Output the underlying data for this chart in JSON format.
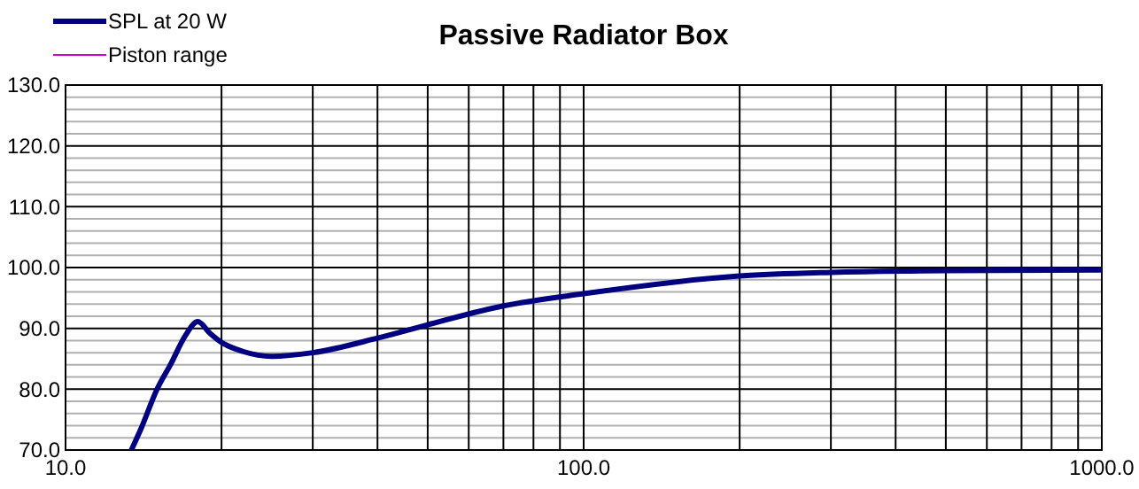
{
  "chart_data": {
    "type": "line",
    "title": "Passive Radiator Box",
    "legend": "top left",
    "grid": true,
    "log": "x",
    "xlim": [
      10,
      1000
    ],
    "ylim": [
      70,
      130
    ],
    "xticks": [
      {
        "value": 10,
        "label": "10.0"
      },
      {
        "value": 20,
        "label": null
      },
      {
        "value": 30,
        "label": null
      },
      {
        "value": 40,
        "label": null
      },
      {
        "value": 50,
        "label": null
      },
      {
        "value": 60,
        "label": null
      },
      {
        "value": 70,
        "label": null
      },
      {
        "value": 80,
        "label": null
      },
      {
        "value": 90,
        "label": null
      },
      {
        "value": 100,
        "label": "100.0"
      },
      {
        "value": 200,
        "label": null
      },
      {
        "value": 300,
        "label": null
      },
      {
        "value": 400,
        "label": null
      },
      {
        "value": 500,
        "label": null
      },
      {
        "value": 600,
        "label": null
      },
      {
        "value": 700,
        "label": null
      },
      {
        "value": 800,
        "label": null
      },
      {
        "value": 900,
        "label": null
      },
      {
        "value": 1000,
        "label": "1000.0"
      }
    ],
    "yticks": [
      {
        "value": 70,
        "label": "70.0"
      },
      {
        "value": 80,
        "label": "80.0"
      },
      {
        "value": 90,
        "label": "90.0"
      },
      {
        "value": 100,
        "label": "100.0"
      },
      {
        "value": 110,
        "label": "110.0"
      },
      {
        "value": 120,
        "label": "120.0"
      },
      {
        "value": 130,
        "label": "130.0"
      }
    ],
    "series": [
      {
        "name": "SPL at 20 W",
        "color": "#000080",
        "x": [
          13.4,
          14,
          15,
          16,
          17,
          18,
          19,
          20,
          22,
          25,
          30,
          40,
          50,
          70,
          100,
          200,
          300,
          500,
          1000
        ],
        "values": [
          70,
          73.6,
          79.9,
          84.3,
          88.7,
          91.1,
          89.2,
          87.7,
          86.2,
          85.4,
          86.0,
          88.4,
          90.6,
          93.7,
          95.7,
          98.6,
          99.2,
          99.5,
          99.6
        ]
      },
      {
        "name": "Piston range",
        "color": "#cc00cc"
      }
    ]
  }
}
